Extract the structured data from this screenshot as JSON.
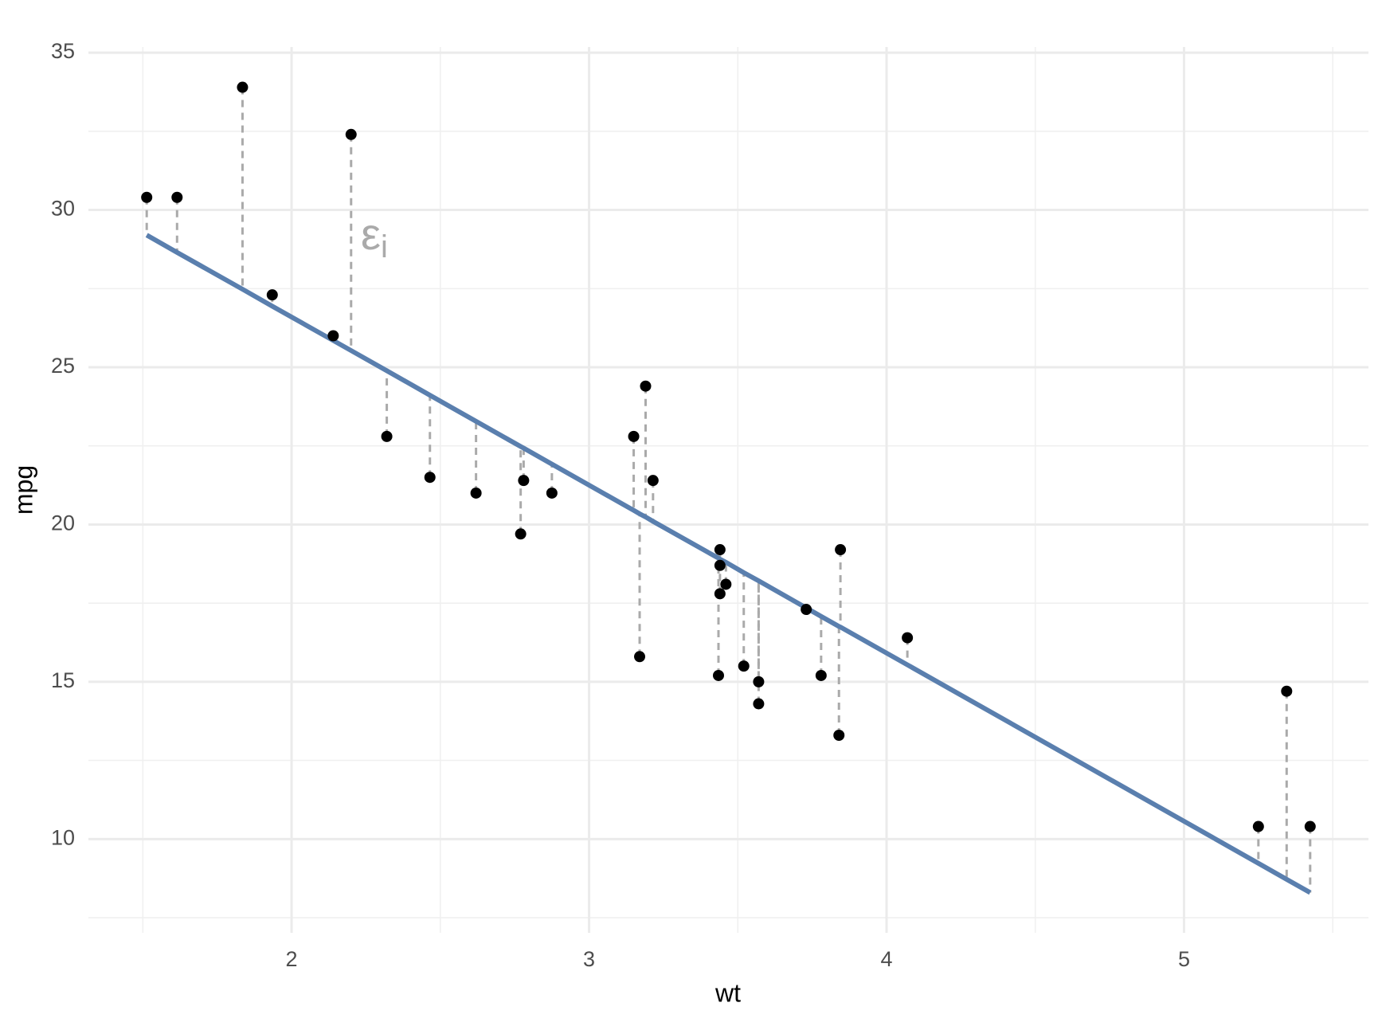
{
  "chart_data": {
    "type": "scatter",
    "x_label": "wt",
    "y_label": "mpg",
    "annotation": "ε",
    "annotation_subscript": "i",
    "x": [
      1.513,
      1.615,
      1.835,
      1.935,
      2.14,
      2.2,
      2.32,
      2.465,
      2.62,
      2.77,
      2.78,
      2.875,
      3.15,
      3.17,
      3.19,
      3.215,
      3.435,
      3.44,
      3.44,
      3.44,
      3.46,
      3.52,
      3.57,
      3.57,
      3.73,
      3.78,
      3.84,
      3.845,
      4.07,
      5.25,
      5.345,
      5.424
    ],
    "y": [
      30.4,
      30.4,
      33.9,
      27.3,
      26.0,
      32.4,
      22.8,
      21.5,
      21.0,
      19.7,
      21.4,
      21.0,
      22.8,
      15.8,
      24.4,
      21.4,
      15.2,
      18.7,
      19.2,
      17.8,
      18.1,
      15.5,
      14.3,
      15.0,
      17.3,
      15.2,
      13.3,
      19.2,
      16.4,
      10.4,
      14.7,
      10.4
    ],
    "fitted": [
      29.2,
      28.65,
      27.48,
      26.94,
      25.85,
      25.53,
      24.89,
      24.11,
      23.28,
      22.48,
      22.43,
      21.92,
      20.45,
      20.34,
      20.24,
      20.1,
      18.93,
      18.9,
      18.9,
      18.9,
      18.8,
      18.47,
      18.21,
      18.21,
      17.35,
      17.08,
      16.76,
      16.74,
      15.54,
      9.23,
      8.72,
      8.3
    ],
    "point_color": "#000000",
    "line_color": "#5a7fae",
    "residual_color": "#aaaaaa",
    "xlim": [
      1.317,
      5.62
    ],
    "ylim": [
      7.02,
      35.18
    ],
    "xticks": [
      2,
      3,
      4,
      5
    ],
    "yticks": [
      10,
      15,
      20,
      25,
      30,
      35
    ],
    "minor_xticks": [
      1.5,
      2.5,
      3.5,
      4.5,
      5.5
    ],
    "minor_yticks": [
      7.5,
      12.5,
      17.5,
      22.5,
      27.5,
      32.5
    ],
    "grid": true
  }
}
